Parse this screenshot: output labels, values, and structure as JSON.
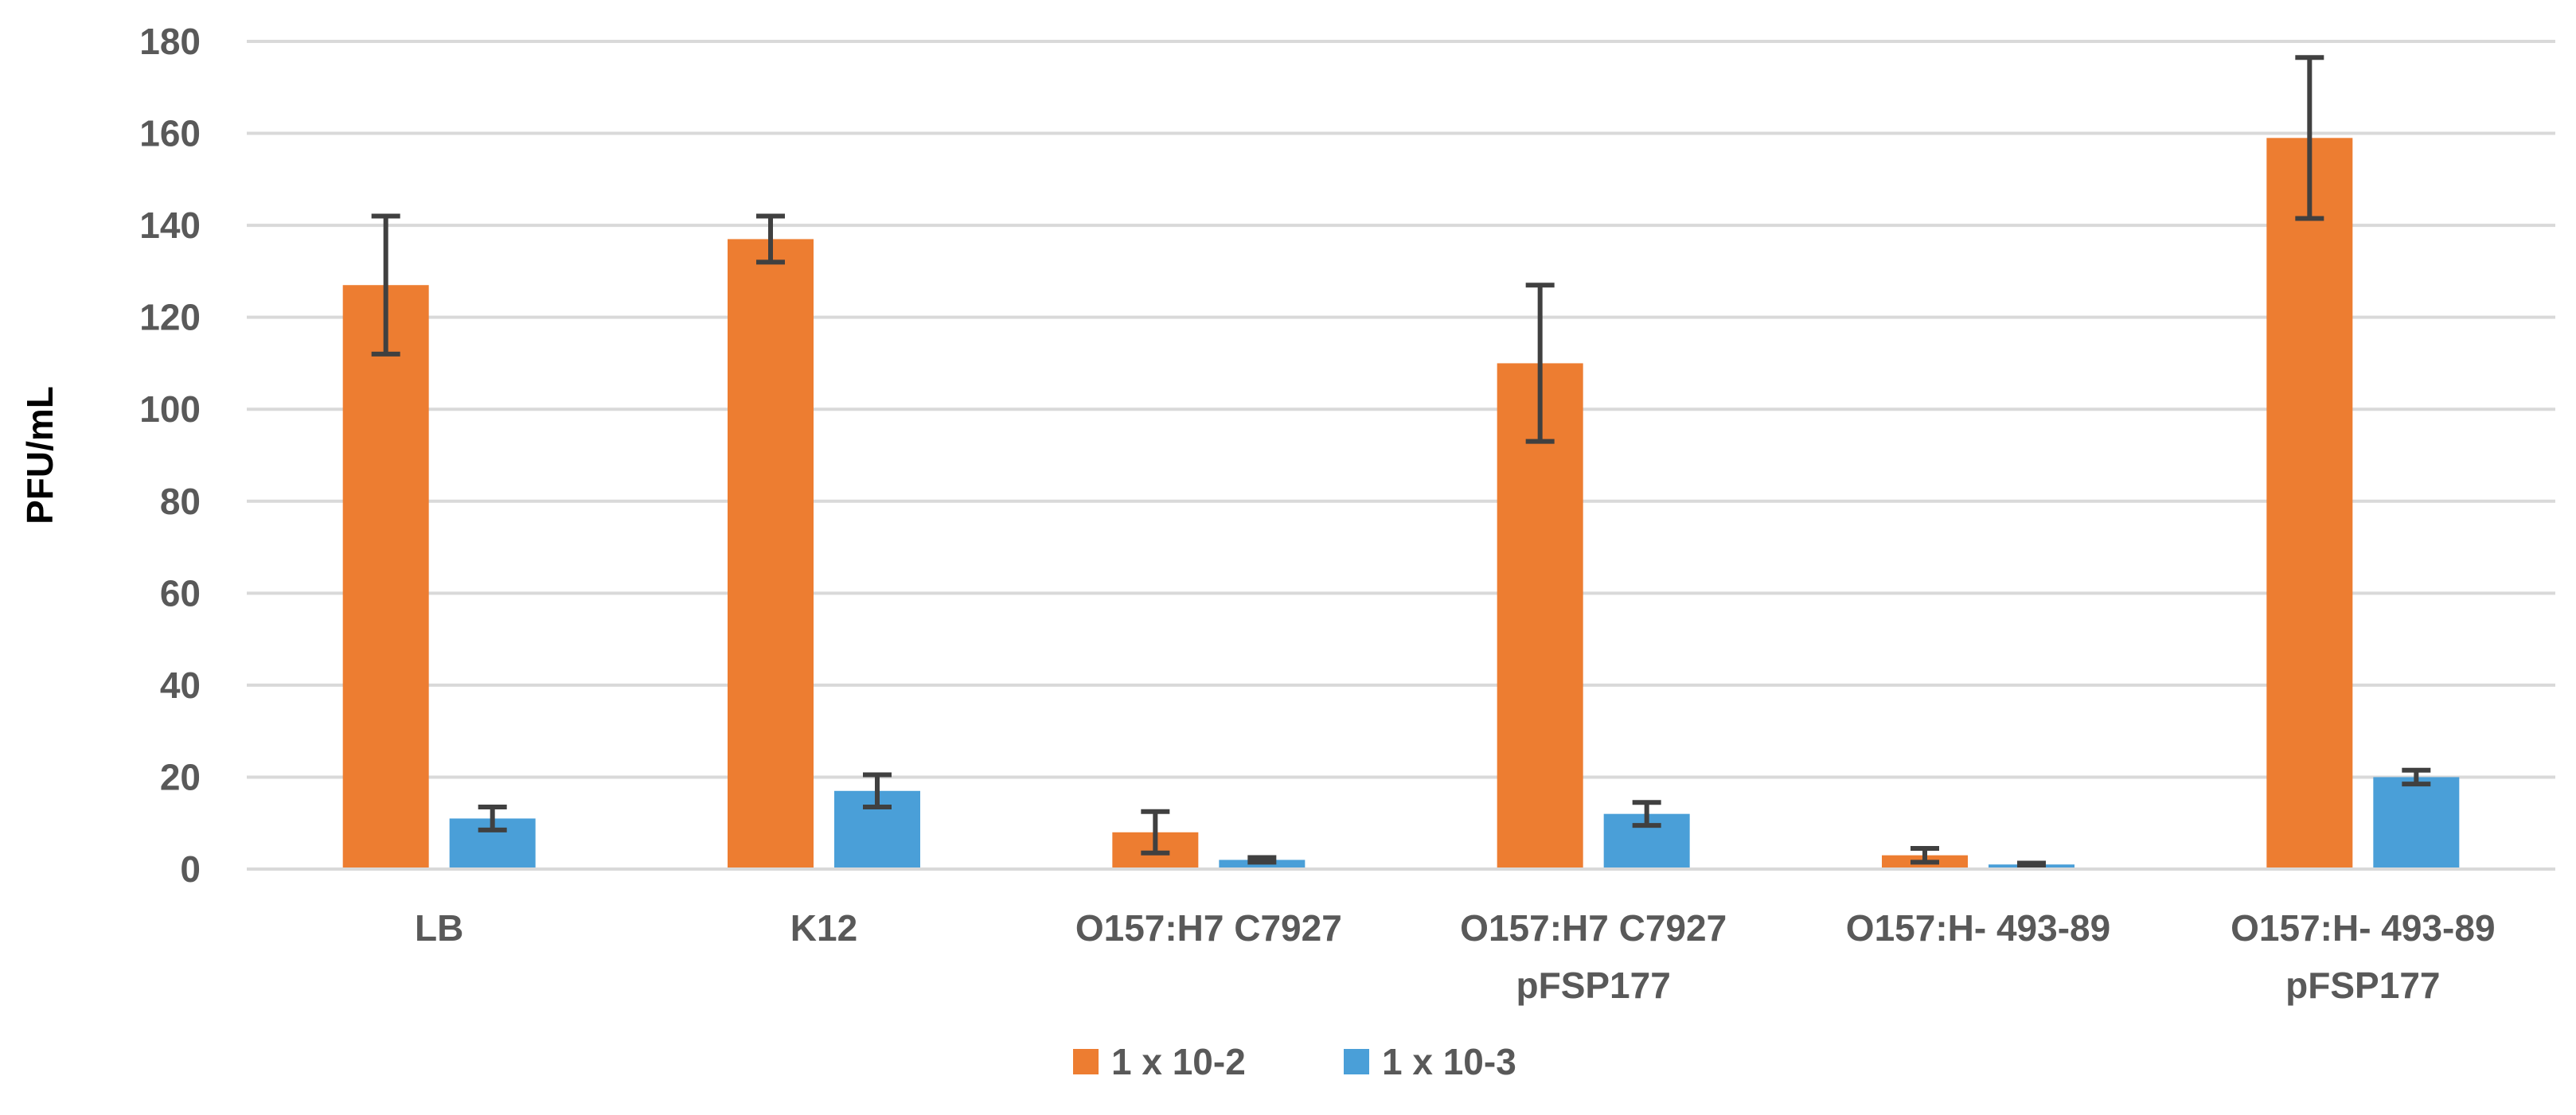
{
  "chart_data": {
    "type": "bar",
    "title": "",
    "xlabel": "",
    "ylabel": "PFU/mL",
    "ylim": [
      0,
      180
    ],
    "yticks": [
      "0",
      "20",
      "40",
      "60",
      "80",
      "100",
      "120",
      "140",
      "160",
      "180"
    ],
    "grid": true,
    "legend_position": "bottom",
    "categories": [
      [
        "LB"
      ],
      [
        "K12"
      ],
      [
        "O157:H7  C7927"
      ],
      [
        "O157:H7  C7927",
        "pFSP177"
      ],
      [
        "O157:H-  493-89"
      ],
      [
        "O157:H-  493-89",
        "pFSP177"
      ]
    ],
    "series": [
      {
        "name": "1 x 10-2",
        "color": "#ED7D31",
        "values": [
          127,
          137,
          8,
          110,
          3,
          159
        ],
        "error": [
          15,
          5,
          4.5,
          17,
          1.5,
          17.5
        ]
      },
      {
        "name": "1 x 10-3",
        "color": "#4A9FD8",
        "values": [
          11,
          17,
          2,
          12,
          1,
          20
        ],
        "error": [
          2.5,
          3.5,
          0.5,
          2.5,
          0.3,
          1.5
        ]
      }
    ],
    "colors": {
      "gridline": "#D9D9D9",
      "axis_line": "#D9D9D9",
      "tick_label": "#595959",
      "error_bar": "#404040"
    }
  }
}
